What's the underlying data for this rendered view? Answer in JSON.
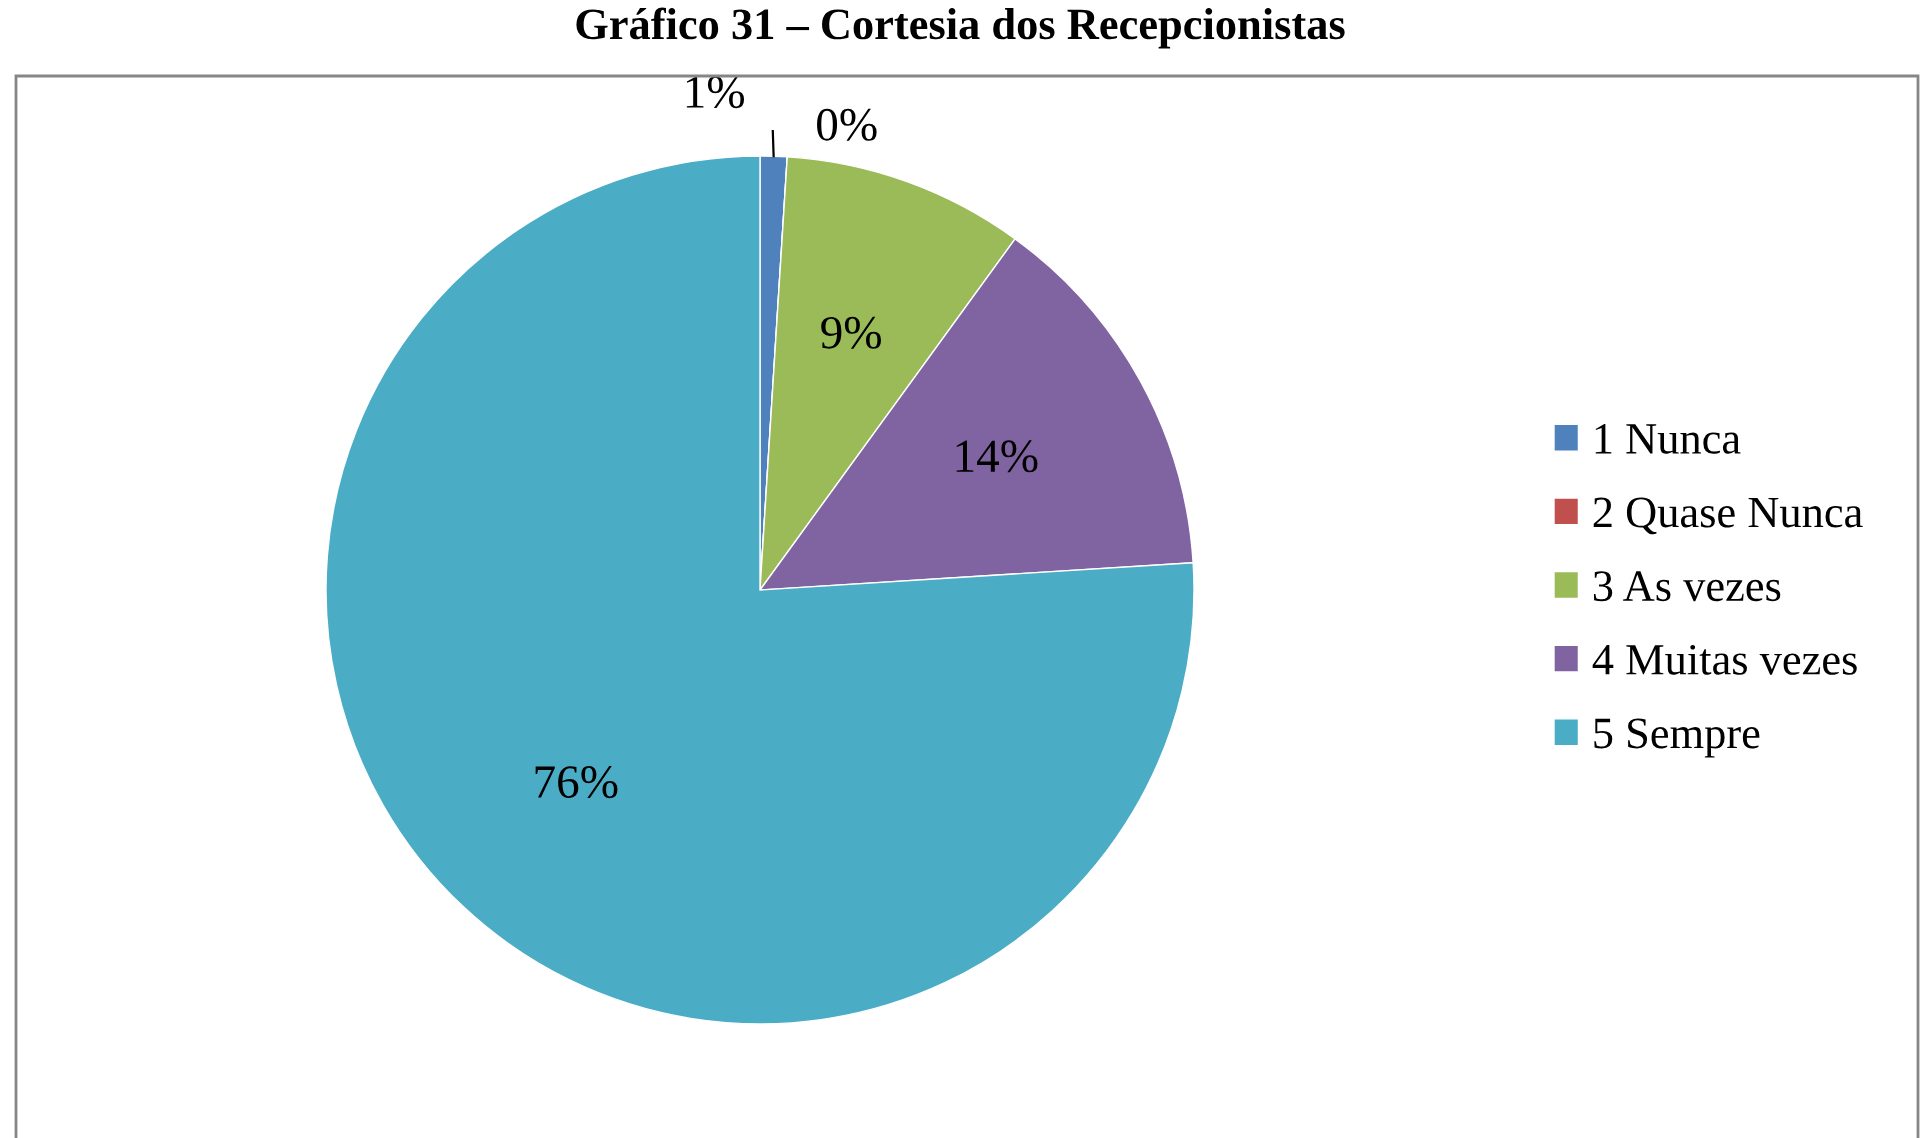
{
  "chart_data": {
    "type": "pie",
    "title": "Gráfico 31 – Cortesia dos Recepcionistas",
    "categories": [
      "1 Nunca",
      "2 Quase Nunca",
      "3 As vezes",
      "4 Muitas vezes",
      "5 Sempre"
    ],
    "values": [
      1,
      0,
      9,
      14,
      76
    ],
    "colors": [
      "#4f81bd",
      "#c0504d",
      "#9bbb59",
      "#8064a2",
      "#4bacc6"
    ],
    "value_labels": [
      "1%",
      "0%",
      "9%",
      "14%",
      "76%"
    ],
    "legend": "right"
  }
}
